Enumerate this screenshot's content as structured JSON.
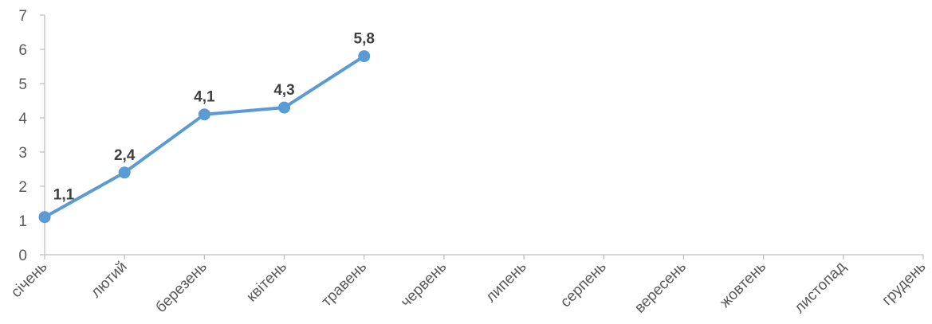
{
  "chart_data": {
    "type": "line",
    "categories": [
      "січень",
      "лютий",
      "березень",
      "квітень",
      "травень",
      "червень",
      "липень",
      "серпень",
      "вересень",
      "жовтень",
      "листопад",
      "грудень"
    ],
    "series": [
      {
        "values": [
          1.1,
          2.4,
          4.1,
          4.3,
          5.8,
          null,
          null,
          null,
          null,
          null,
          null,
          null
        ]
      }
    ],
    "data_labels": [
      "1,1",
      "2,4",
      "4,1",
      "4,3",
      "5,8"
    ],
    "y_ticks": [
      "0",
      "1",
      "2",
      "3",
      "4",
      "5",
      "6",
      "7"
    ],
    "ylim": [
      0,
      7
    ],
    "grid": false,
    "legend": "none",
    "colors": {
      "line": "#5b9bd5",
      "axis": "#bfbfbf",
      "label": "#595959"
    }
  }
}
